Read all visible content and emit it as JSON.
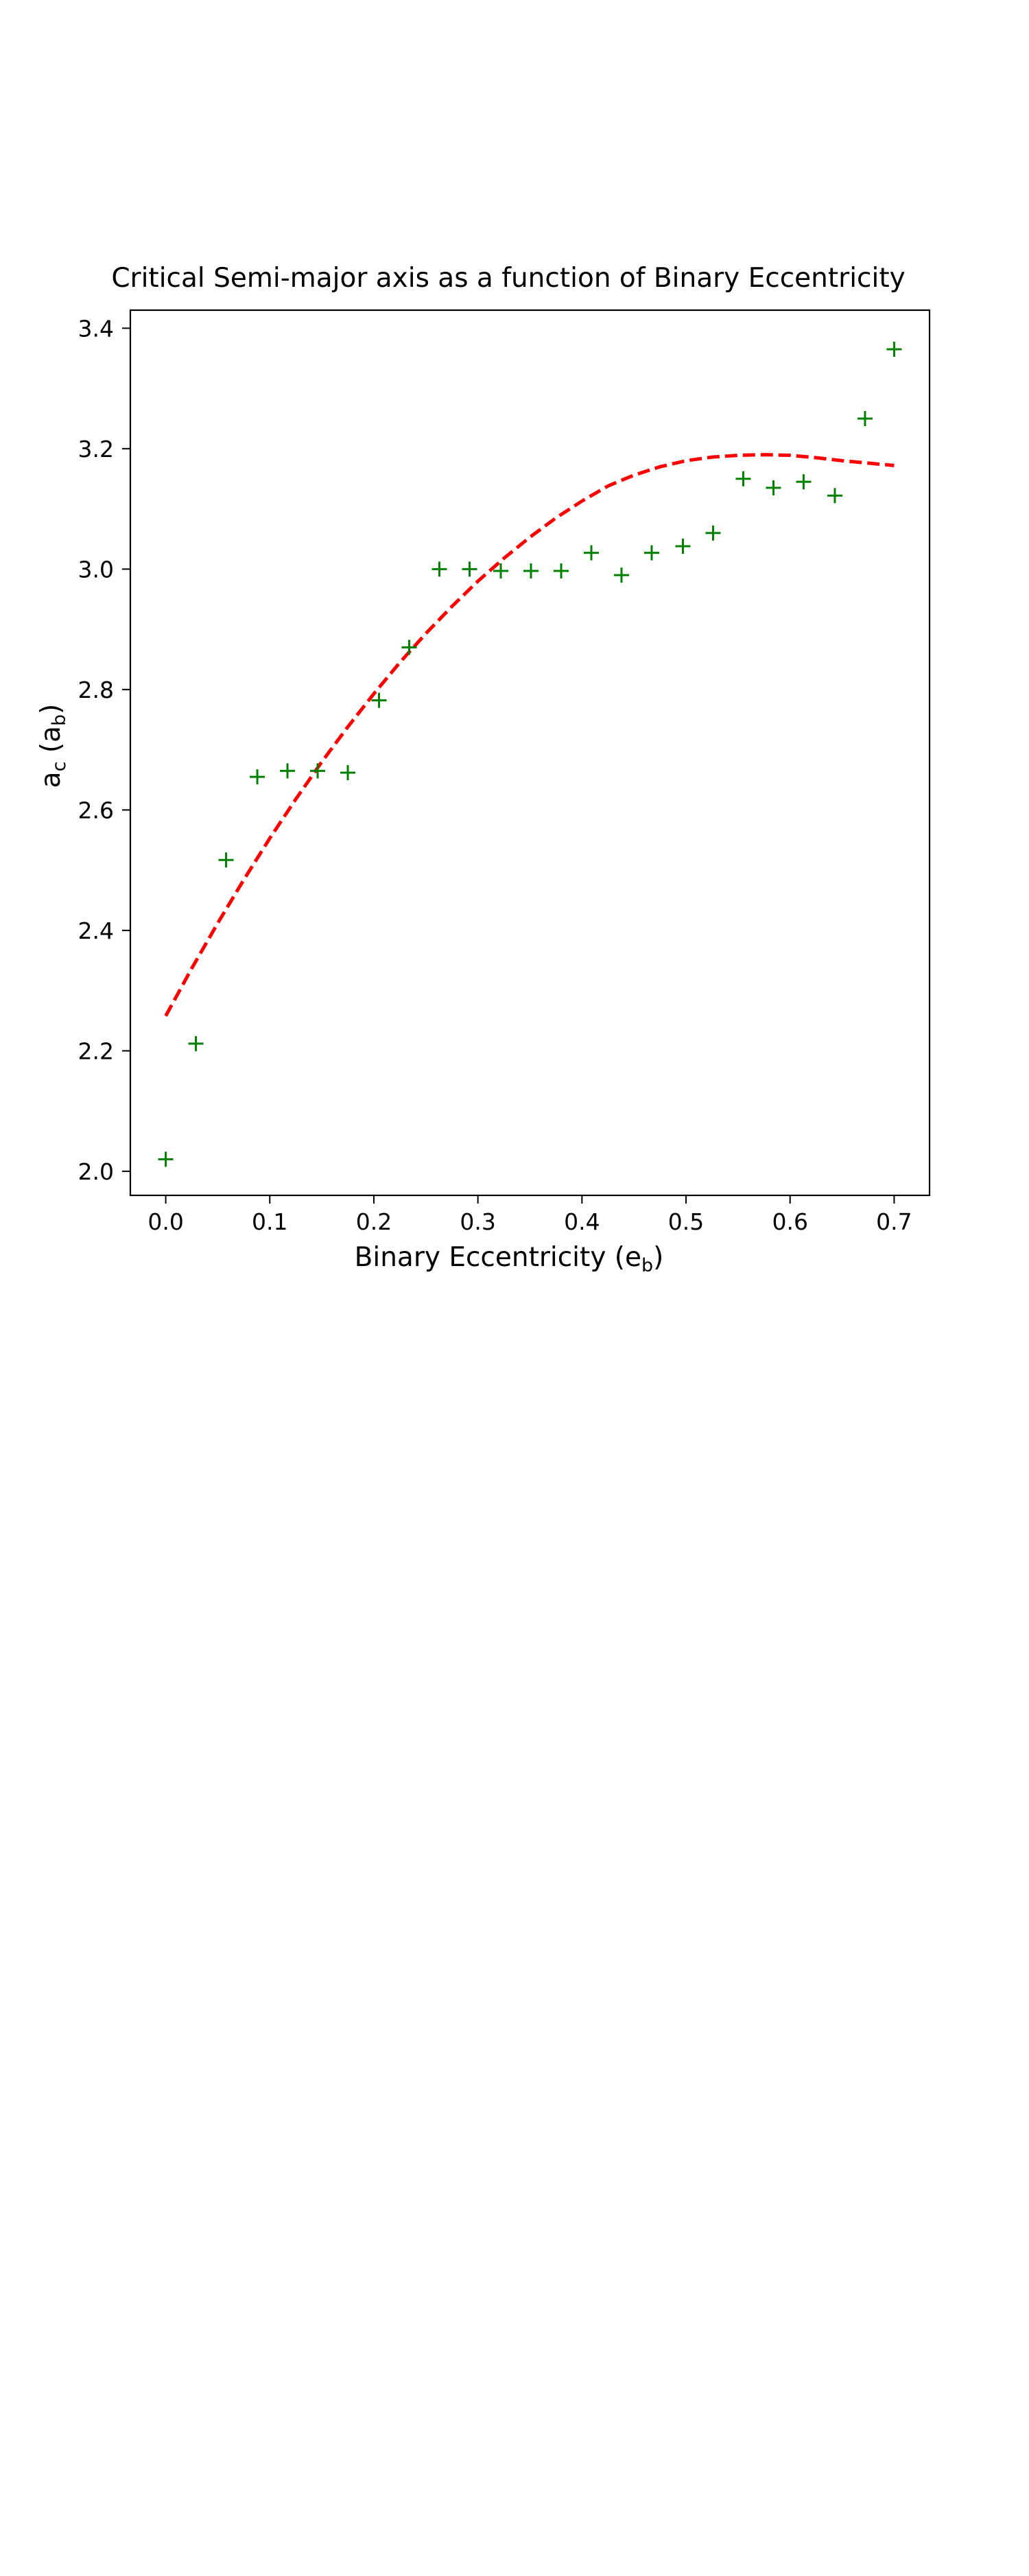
{
  "chart_data": {
    "type": "scatter",
    "title": "Critical Semi-major axis as a function of Binary Eccentricity",
    "xlabel": {
      "base": "Binary Eccentricity (e",
      "sub": "b",
      "tail": ")"
    },
    "ylabel": {
      "base": "a",
      "sub1": "c",
      "mid": " (a",
      "sub2": "b",
      "tail": ")"
    },
    "xlim": [
      -0.034,
      0.734
    ],
    "ylim": [
      1.96,
      3.43
    ],
    "xticks": [
      0.0,
      0.1,
      0.2,
      0.3,
      0.4,
      0.5,
      0.6,
      0.7
    ],
    "xtick_labels": [
      "0.0",
      "0.1",
      "0.2",
      "0.3",
      "0.4",
      "0.5",
      "0.6",
      "0.7"
    ],
    "yticks": [
      2.0,
      2.2,
      2.4,
      2.6,
      2.8,
      3.0,
      3.2,
      3.4
    ],
    "ytick_labels": [
      "2.0",
      "2.2",
      "2.4",
      "2.6",
      "2.8",
      "3.0",
      "3.2",
      "3.4"
    ],
    "grid": false,
    "series": [
      {
        "kind": "scatter",
        "marker": "+",
        "color": "#008000",
        "x": [
          0.0,
          0.029,
          0.058,
          0.088,
          0.117,
          0.146,
          0.175,
          0.205,
          0.234,
          0.263,
          0.292,
          0.322,
          0.351,
          0.38,
          0.409,
          0.438,
          0.467,
          0.497,
          0.526,
          0.555,
          0.584,
          0.613,
          0.643,
          0.672,
          0.7
        ],
        "y": [
          2.02,
          2.212,
          2.517,
          2.655,
          2.665,
          2.665,
          2.662,
          2.782,
          2.87,
          3.0,
          3.0,
          2.997,
          2.997,
          2.997,
          3.027,
          2.99,
          3.027,
          3.038,
          3.06,
          3.15,
          3.135,
          3.145,
          3.122,
          3.25,
          3.365
        ]
      },
      {
        "kind": "line",
        "style": "dashed",
        "color": "#ff0000",
        "x": [
          0.0,
          0.025,
          0.05,
          0.075,
          0.1,
          0.125,
          0.15,
          0.175,
          0.2,
          0.225,
          0.25,
          0.275,
          0.3,
          0.325,
          0.35,
          0.375,
          0.4,
          0.425,
          0.45,
          0.475,
          0.5,
          0.525,
          0.55,
          0.575,
          0.6,
          0.625,
          0.65,
          0.675,
          0.7
        ],
        "y": [
          2.258,
          2.337,
          2.412,
          2.484,
          2.553,
          2.618,
          2.68,
          2.738,
          2.793,
          2.845,
          2.893,
          2.938,
          2.98,
          3.018,
          3.053,
          3.085,
          3.113,
          3.138,
          3.156,
          3.17,
          3.18,
          3.186,
          3.189,
          3.19,
          3.189,
          3.185,
          3.18,
          3.176,
          3.172
        ]
      }
    ]
  }
}
